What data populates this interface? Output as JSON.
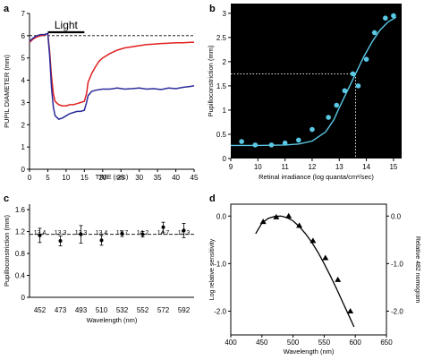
{
  "chart_data": [
    {
      "panel": "a",
      "type": "line",
      "xlabel": "TIME (sec)",
      "ylabel": "PUPIL DIAMETER (mm)",
      "xlim": [
        0,
        45
      ],
      "ylim": [
        0,
        7
      ],
      "xticks": [
        0,
        5,
        10,
        15,
        20,
        25,
        30,
        35,
        40,
        45
      ],
      "yticks": [
        0,
        1,
        2,
        3,
        4,
        5,
        6,
        7
      ],
      "annotation": "Light",
      "stimulus": [
        5,
        15
      ],
      "reference_line": 6,
      "series": [
        {
          "color": "#e02020",
          "x": [
            0,
            1,
            2,
            3,
            4,
            5,
            5.5,
            6,
            6.5,
            7,
            8,
            9,
            10,
            11,
            12,
            13,
            14,
            15,
            15.6,
            16,
            17,
            18,
            19,
            20,
            22,
            24,
            26,
            28,
            30,
            32,
            34,
            36,
            38,
            40,
            42,
            44,
            45
          ],
          "y": [
            5.7,
            5.85,
            5.95,
            6.0,
            6.02,
            6.1,
            5.3,
            4.2,
            3.4,
            3.05,
            2.9,
            2.85,
            2.85,
            2.9,
            2.9,
            2.95,
            3.0,
            3.05,
            3.4,
            3.9,
            4.3,
            4.6,
            4.85,
            5.0,
            5.2,
            5.35,
            5.45,
            5.5,
            5.55,
            5.6,
            5.62,
            5.65,
            5.66,
            5.68,
            5.68,
            5.7,
            5.7
          ]
        },
        {
          "color": "#2a2a9a",
          "x": [
            0,
            1,
            2,
            3,
            4,
            5,
            5.5,
            6,
            6.5,
            7,
            8,
            9,
            10,
            11,
            12,
            13,
            14,
            15,
            15.6,
            16,
            17,
            18,
            20,
            22,
            24,
            26,
            28,
            30,
            32,
            34,
            36,
            38,
            40,
            42,
            44,
            45
          ],
          "y": [
            5.75,
            5.9,
            6.0,
            6.05,
            6.05,
            6.1,
            5.1,
            3.7,
            2.8,
            2.4,
            2.25,
            2.3,
            2.4,
            2.5,
            2.55,
            2.6,
            2.6,
            2.65,
            3.0,
            3.3,
            3.5,
            3.55,
            3.6,
            3.6,
            3.65,
            3.6,
            3.62,
            3.65,
            3.6,
            3.62,
            3.58,
            3.65,
            3.62,
            3.68,
            3.72,
            3.75
          ]
        }
      ]
    },
    {
      "panel": "b",
      "type": "scatter",
      "xlabel": "Retinal irradiance (log quanta/cm²/sec)",
      "ylabel": "Pupilloconstriction (mm)",
      "xlim": [
        9,
        15.3
      ],
      "ylim": [
        0,
        3.2
      ],
      "xticks": [
        9,
        10,
        11,
        12,
        13,
        14,
        15
      ],
      "yticks": [
        0,
        0.5,
        1,
        1.5,
        2,
        2.5,
        3
      ],
      "background": "#000000",
      "points": [
        [
          9.4,
          0.35
        ],
        [
          9.9,
          0.28
        ],
        [
          10.5,
          0.28
        ],
        [
          11.0,
          0.32
        ],
        [
          11.5,
          0.38
        ],
        [
          12.0,
          0.6
        ],
        [
          12.6,
          0.85
        ],
        [
          12.9,
          1.1
        ],
        [
          13.2,
          1.4
        ],
        [
          13.5,
          1.75
        ],
        [
          13.7,
          1.5
        ],
        [
          14.0,
          2.05
        ],
        [
          14.3,
          2.6
        ],
        [
          14.7,
          2.9
        ],
        [
          15.0,
          2.95
        ]
      ],
      "fit": [
        [
          9.0,
          0.27
        ],
        [
          10.0,
          0.27
        ],
        [
          11.0,
          0.28
        ],
        [
          11.5,
          0.3
        ],
        [
          12.0,
          0.36
        ],
        [
          12.5,
          0.55
        ],
        [
          12.8,
          0.8
        ],
        [
          13.0,
          1.05
        ],
        [
          13.3,
          1.4
        ],
        [
          13.6,
          1.75
        ],
        [
          13.9,
          2.1
        ],
        [
          14.2,
          2.4
        ],
        [
          14.5,
          2.65
        ],
        [
          14.8,
          2.82
        ],
        [
          15.1,
          2.92
        ]
      ],
      "guide": {
        "x": 13.6,
        "y": 1.75
      }
    },
    {
      "panel": "c",
      "type": "scatter",
      "xlabel": "Wavelength (nm)",
      "ylabel": "Pupilloconstriction (mm)",
      "categories": [
        "452",
        "473",
        "493",
        "510",
        "532",
        "552",
        "572",
        "592"
      ],
      "values": [
        1.13,
        1.03,
        1.15,
        1.04,
        1.16,
        1.15,
        1.28,
        1.22
      ],
      "errors": [
        0.13,
        0.09,
        0.16,
        0.09,
        0.05,
        0.05,
        0.09,
        0.13
      ],
      "top_labels": [
        "13.4",
        "13.3",
        "13.3",
        "13.4",
        "13.7",
        "14.2",
        "14.7",
        "15.3"
      ],
      "ylim": [
        0,
        1.7
      ],
      "yticks": [
        0,
        0.4,
        0.8,
        1.2,
        1.6
      ],
      "reference_line": 1.15
    },
    {
      "panel": "d",
      "type": "scatter",
      "xlabel": "Wavelength (nm)",
      "ylabel": "Log relative sensitivity",
      "y2label": "Relative 482 nomogram",
      "xlim": [
        400,
        650
      ],
      "ylim": [
        -2.5,
        0.25
      ],
      "xticks": [
        400,
        450,
        500,
        550,
        600,
        650
      ],
      "yticks": [
        0.0,
        -1.0,
        -2.0
      ],
      "points": [
        [
          452,
          -0.12
        ],
        [
          473,
          -0.02
        ],
        [
          493,
          0.0
        ],
        [
          510,
          -0.2
        ],
        [
          532,
          -0.52
        ],
        [
          552,
          -0.88
        ],
        [
          572,
          -1.34
        ],
        [
          592,
          -2.0
        ]
      ],
      "curve": [
        [
          440,
          -0.37
        ],
        [
          450,
          -0.15
        ],
        [
          460,
          -0.05
        ],
        [
          470,
          -0.01
        ],
        [
          480,
          0.0
        ],
        [
          490,
          -0.03
        ],
        [
          500,
          -0.1
        ],
        [
          510,
          -0.22
        ],
        [
          520,
          -0.37
        ],
        [
          530,
          -0.55
        ],
        [
          540,
          -0.76
        ],
        [
          550,
          -1.0
        ],
        [
          560,
          -1.26
        ],
        [
          570,
          -1.53
        ],
        [
          580,
          -1.82
        ],
        [
          590,
          -2.1
        ],
        [
          598,
          -2.33
        ]
      ]
    }
  ],
  "panel_letters": [
    "a",
    "b",
    "c",
    "d"
  ]
}
